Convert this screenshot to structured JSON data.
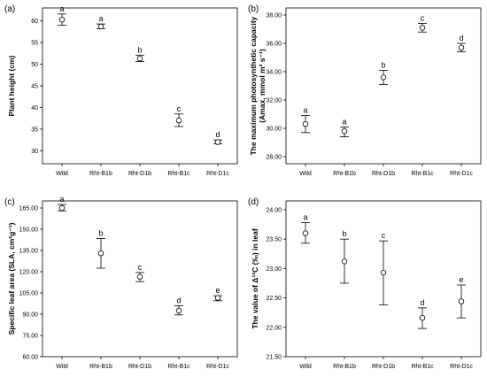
{
  "chart_data": [
    {
      "panel_label": "(a)",
      "type": "scatter",
      "chart_style": "mean with error bars",
      "categories": [
        "Wild",
        "Rht-B1b",
        "Rht-D1b",
        "Rht-B1c",
        "Rht-D1c"
      ],
      "ylabel": "Plant height (cm)",
      "ylim": [
        27,
        63
      ],
      "yticks": [
        "30",
        "35",
        "40",
        "45",
        "50",
        "55",
        "60"
      ],
      "means": [
        60.3,
        58.7,
        51.3,
        37.0,
        32.0
      ],
      "err_low": [
        59.0,
        58.2,
        50.6,
        35.6,
        31.6
      ],
      "err_high": [
        61.6,
        59.3,
        52.1,
        38.5,
        32.5
      ],
      "letters": [
        "a",
        "a",
        "b",
        "c",
        "d"
      ],
      "grid": false
    },
    {
      "panel_label": "(b)",
      "type": "scatter",
      "chart_style": "mean with error bars",
      "categories": [
        "Wild",
        "Rht-B1b",
        "Rht-D1b",
        "Rht-B1c",
        "Rht-D1c"
      ],
      "ylabel_line1": "The maximum photosynthetic capacity",
      "ylabel_line2": "(Amax, mmol m² s⁻¹)",
      "ylim": [
        27.5,
        38.5
      ],
      "yticks": [
        "28.00",
        "30.00",
        "32.00",
        "34.00",
        "36.00",
        "38.00"
      ],
      "means": [
        30.3,
        29.8,
        33.6,
        37.1,
        35.7
      ],
      "err_low": [
        29.7,
        29.4,
        33.1,
        36.8,
        35.4
      ],
      "err_high": [
        30.9,
        30.1,
        34.1,
        37.4,
        36.0
      ],
      "letters": [
        "a",
        "a",
        "b",
        "c",
        "d"
      ],
      "grid": false
    },
    {
      "panel_label": "(c)",
      "type": "scatter",
      "chart_style": "mean with error bars",
      "categories": [
        "Wild",
        "Rht-B1b",
        "Rht-D1b",
        "Rht-B1c",
        "Rht-D1c"
      ],
      "ylabel": "Specific leaf area (SLA, cm²g⁻¹)",
      "ylim": [
        60,
        170
      ],
      "yticks": [
        "60.00",
        "75.00",
        "90.00",
        "105.00",
        "120.00",
        "135.00",
        "150.00",
        "165.00"
      ],
      "means": [
        165.0,
        133.0,
        116.5,
        92.5,
        101.5
      ],
      "err_low": [
        163.0,
        122.5,
        113.0,
        89.5,
        99.5
      ],
      "err_high": [
        167.5,
        143.5,
        119.5,
        96.0,
        103.0
      ],
      "letters": [
        "a",
        "b",
        "c",
        "d",
        "e"
      ],
      "grid": false
    },
    {
      "panel_label": "(d)",
      "type": "scatter",
      "chart_style": "mean with error bars",
      "categories": [
        "Wild",
        "Rht-B1b",
        "Rht-D1b",
        "Rht-B1c",
        "Rht-D1c"
      ],
      "ylabel": "The value of Δ¹³C (‰) in leaf",
      "ylim": [
        21.5,
        24.15
      ],
      "yticks": [
        "21.50",
        "22.00",
        "22.50",
        "23.00",
        "23.50",
        "24.00"
      ],
      "means": [
        23.6,
        23.12,
        22.93,
        22.16,
        22.44
      ],
      "err_low": [
        23.43,
        22.75,
        22.38,
        21.98,
        22.16
      ],
      "err_high": [
        23.78,
        23.5,
        23.47,
        22.33,
        22.72
      ],
      "letters": [
        "a",
        "b",
        "c",
        "d",
        "e"
      ],
      "grid": false
    }
  ]
}
